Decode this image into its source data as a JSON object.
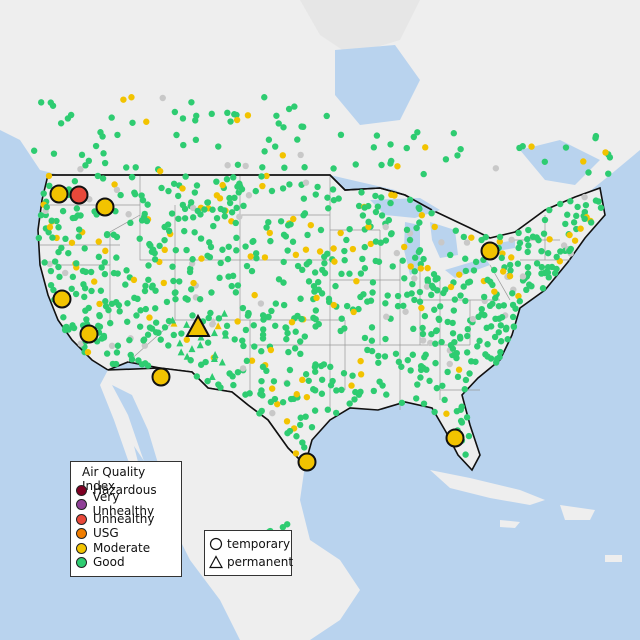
{
  "legend": {
    "title": "Air Quality Index",
    "items": [
      {
        "label": "Hazardous",
        "color": "#7e0023"
      },
      {
        "label": "Very Unhealthy",
        "color": "#8f3f97"
      },
      {
        "label": "Unhealthy",
        "color": "#e8483a"
      },
      {
        "label": "USG",
        "color": "#f07d00"
      },
      {
        "label": "Moderate",
        "color": "#f2c300"
      },
      {
        "label": "Good",
        "color": "#2ecc71"
      }
    ]
  },
  "type_legend": {
    "items": [
      {
        "label": "temporary",
        "shape": "circle"
      },
      {
        "label": "permanent",
        "shape": "triangle"
      }
    ]
  },
  "colors": {
    "ocean": "#b9d3ee",
    "land": "#eeeeee",
    "border": "#111111",
    "state_line": "#999999",
    "good": "#2ecc71",
    "moderate": "#f2c300",
    "unhealthy": "#e8483a",
    "no_data": "#c8c8c8"
  },
  "highlighted_sites": [
    {
      "category": "Moderate",
      "type": "temporary"
    },
    {
      "category": "Unhealthy",
      "type": "temporary"
    },
    {
      "category": "Moderate",
      "type": "temporary"
    },
    {
      "category": "Moderate",
      "type": "temporary"
    },
    {
      "category": "Moderate",
      "type": "temporary"
    },
    {
      "category": "Moderate",
      "type": "temporary"
    },
    {
      "category": "Moderate",
      "type": "permanent"
    },
    {
      "category": "Moderate",
      "type": "temporary"
    },
    {
      "category": "Moderate",
      "type": "temporary"
    },
    {
      "category": "Moderate",
      "type": "temporary"
    }
  ]
}
